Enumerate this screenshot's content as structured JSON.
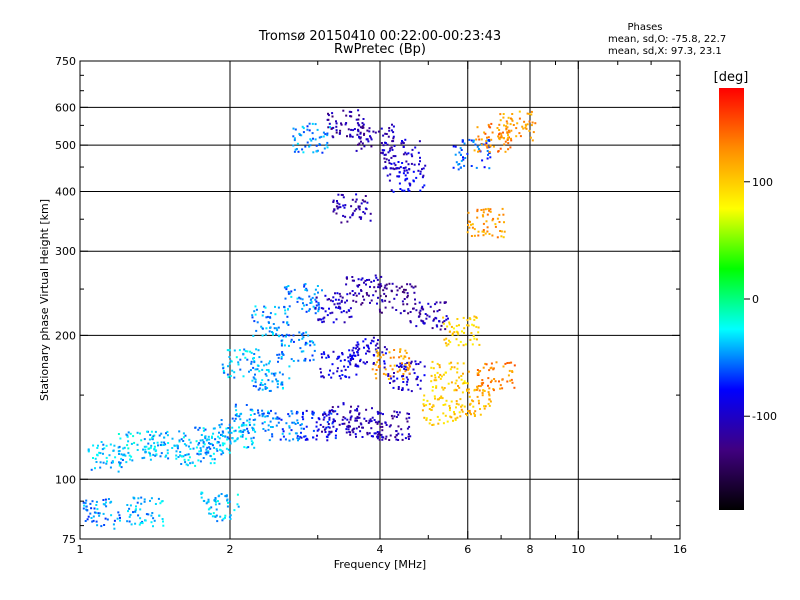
{
  "chart_data": {
    "type": "scatter",
    "title": "Tromsø 20150410 00:22:00-00:23:43",
    "subtitle": "RwPretec (Bp)",
    "xlabel": "Frequency [MHz]",
    "ylabel": "Stationary phase Virtual Height [km]",
    "xscale": "log",
    "yscale": "log",
    "xlim": [
      1,
      16
    ],
    "ylim": [
      75,
      750
    ],
    "x_ticks": [
      1,
      2,
      4,
      6,
      8,
      10,
      16
    ],
    "y_ticks": [
      75,
      100,
      200,
      300,
      400,
      500,
      600,
      750
    ],
    "grid": true,
    "stats": {
      "heading": "Phases",
      "line_o": "mean, sd,O: -75.8, 22.7",
      "line_x": "mean, sd,X:  97.3, 23.1"
    },
    "colorbar": {
      "label": "[deg]",
      "range": [
        -180,
        180
      ],
      "ticks": [
        100,
        0,
        -100
      ],
      "colors": [
        "#ff0000",
        "#ff8c00",
        "#ffff00",
        "#00ff00",
        "#00ffff",
        "#0000ff",
        "#400080",
        "#000000"
      ]
    },
    "series": [
      {
        "clusters": [
          {
            "x": 1.13,
            "y": 112,
            "phase": -40
          },
          {
            "x": 1.3,
            "y": 118,
            "phase": -35
          },
          {
            "x": 1.5,
            "y": 118,
            "phase": -38
          },
          {
            "x": 1.7,
            "y": 115,
            "phase": -40
          },
          {
            "x": 1.85,
            "y": 120,
            "phase": -42
          },
          {
            "x": 2.05,
            "y": 125,
            "phase": -40
          },
          {
            "x": 2.2,
            "y": 135,
            "phase": -45
          },
          {
            "x": 2.1,
            "y": 175,
            "phase": -40
          },
          {
            "x": 2.4,
            "y": 165,
            "phase": -45
          },
          {
            "x": 2.7,
            "y": 190,
            "phase": -50
          },
          {
            "x": 2.4,
            "y": 215,
            "phase": -45
          },
          {
            "x": 2.8,
            "y": 240,
            "phase": -50
          },
          {
            "x": 2.6,
            "y": 130,
            "phase": -55
          },
          {
            "x": 3.0,
            "y": 130,
            "phase": -80
          },
          {
            "x": 3.3,
            "y": 135,
            "phase": -110
          },
          {
            "x": 3.7,
            "y": 132,
            "phase": -105
          },
          {
            "x": 4.2,
            "y": 130,
            "phase": -110
          },
          {
            "x": 4.5,
            "y": 165,
            "phase": -95
          },
          {
            "x": 3.3,
            "y": 175,
            "phase": -90
          },
          {
            "x": 3.8,
            "y": 185,
            "phase": -95
          },
          {
            "x": 4.2,
            "y": 175,
            "phase": 120
          },
          {
            "x": 3.2,
            "y": 230,
            "phase": -100
          },
          {
            "x": 3.7,
            "y": 250,
            "phase": -110
          },
          {
            "x": 4.3,
            "y": 240,
            "phase": -120
          },
          {
            "x": 5.0,
            "y": 220,
            "phase": -110
          },
          {
            "x": 5.5,
            "y": 165,
            "phase": 100
          },
          {
            "x": 5.3,
            "y": 140,
            "phase": 100
          },
          {
            "x": 6.1,
            "y": 145,
            "phase": 110
          },
          {
            "x": 6.8,
            "y": 165,
            "phase": 130
          },
          {
            "x": 5.8,
            "y": 205,
            "phase": 95
          },
          {
            "x": 3.5,
            "y": 370,
            "phase": -110
          },
          {
            "x": 3.4,
            "y": 555,
            "phase": -115
          },
          {
            "x": 3.9,
            "y": 520,
            "phase": -110
          },
          {
            "x": 4.4,
            "y": 480,
            "phase": -100
          },
          {
            "x": 4.5,
            "y": 430,
            "phase": -90
          },
          {
            "x": 2.9,
            "y": 520,
            "phase": -50
          },
          {
            "x": 6.1,
            "y": 480,
            "phase": -60
          },
          {
            "x": 6.7,
            "y": 520,
            "phase": 130
          },
          {
            "x": 7.5,
            "y": 550,
            "phase": 120
          },
          {
            "x": 1.1,
            "y": 85,
            "phase": -50
          },
          {
            "x": 1.35,
            "y": 86,
            "phase": -40
          },
          {
            "x": 1.9,
            "y": 88,
            "phase": -35
          },
          {
            "x": 6.5,
            "y": 345,
            "phase": 120
          }
        ]
      }
    ]
  }
}
